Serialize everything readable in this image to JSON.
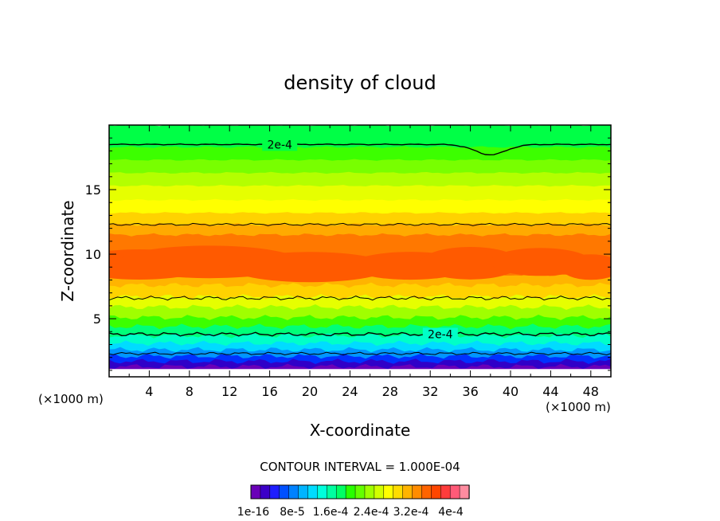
{
  "chart_data": {
    "type": "contour",
    "title": "density of cloud",
    "xlabel": "X-coordinate",
    "ylabel": "Z-coordinate",
    "x_unit_left": "(×1000 m)",
    "x_unit_right": "(×1000 m)",
    "xlim": [
      0,
      50
    ],
    "ylim": [
      0.5,
      20
    ],
    "x_ticks": [
      4,
      8,
      12,
      16,
      20,
      24,
      28,
      32,
      36,
      40,
      44,
      48
    ],
    "y_ticks": [
      5,
      10,
      15
    ],
    "contour_interval_text": "CONTOUR INTERVAL = 1.000E-04",
    "contour_labels": [
      "2e-4",
      "2e-4"
    ],
    "contour_levels_drawn": [
      0.0001,
      0.0002,
      0.0003
    ],
    "bands": [
      {
        "z": 1.3,
        "color": "#6a00b8"
      },
      {
        "z": 1.7,
        "color": "#3000c8"
      },
      {
        "z": 2.1,
        "color": "#0032ff"
      },
      {
        "z": 2.6,
        "color": "#0096ff"
      },
      {
        "z": 3.1,
        "color": "#00dcff"
      },
      {
        "z": 3.7,
        "color": "#00ffc8"
      },
      {
        "z": 4.4,
        "color": "#00ff78"
      },
      {
        "z": 5.1,
        "color": "#3cff00"
      },
      {
        "z": 5.9,
        "color": "#a0ff00"
      },
      {
        "z": 6.7,
        "color": "#e6ff00"
      },
      {
        "z": 7.6,
        "color": "#ffd200"
      },
      {
        "z": 8.4,
        "color": "#ffb400"
      },
      {
        "z": 11.5,
        "color": "#ff7800"
      },
      {
        "z": 12.3,
        "color": "#ffaa00"
      },
      {
        "z": 13.2,
        "color": "#ffd200"
      },
      {
        "z": 14.2,
        "color": "#ffff00"
      },
      {
        "z": 15.3,
        "color": "#e6ff00"
      },
      {
        "z": 16.3,
        "color": "#b4ff00"
      },
      {
        "z": 17.3,
        "color": "#78ff00"
      },
      {
        "z": 18.3,
        "color": "#3cff00"
      },
      {
        "z": 20.0,
        "color": "#00ff46"
      }
    ],
    "core_color": "#ff5a00",
    "colorbar": {
      "labels": [
        "1e-16",
        "8e-5",
        "1.6e-4",
        "2.4e-4",
        "3.2e-4",
        "4e-4"
      ],
      "colors": [
        "#6a00b8",
        "#3c00c8",
        "#1e1eff",
        "#0050ff",
        "#0082ff",
        "#00b4ff",
        "#00dcff",
        "#00ffdc",
        "#00ffa0",
        "#00ff64",
        "#28ff00",
        "#64ff00",
        "#a0ff00",
        "#d2ff00",
        "#ffff00",
        "#ffdc00",
        "#ffb400",
        "#ff8c00",
        "#ff6400",
        "#ff4600",
        "#ff3c3c",
        "#ff5a78",
        "#ff8ca0"
      ]
    }
  }
}
